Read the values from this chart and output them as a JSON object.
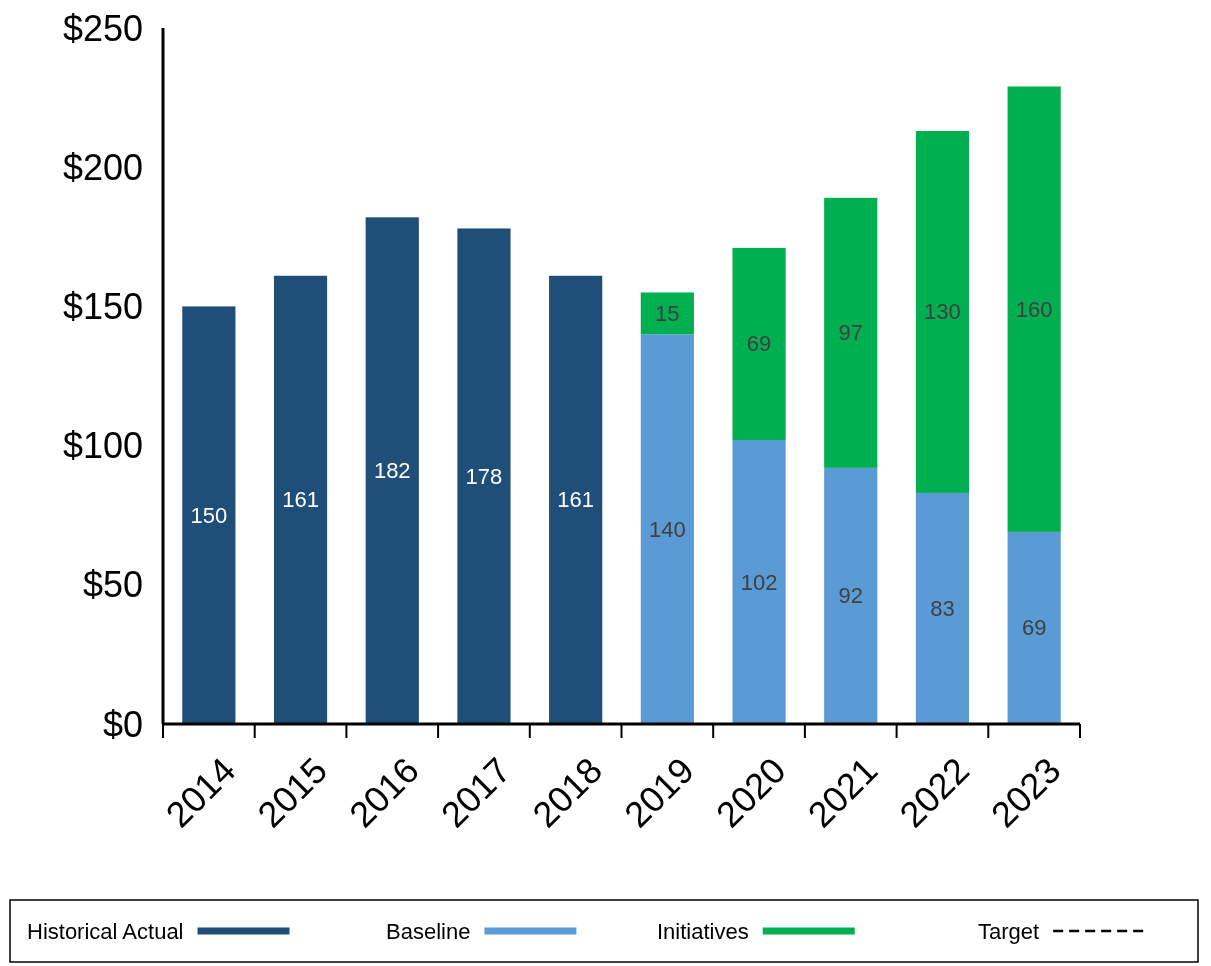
{
  "chart_data": {
    "type": "bar",
    "stacked": true,
    "data_labels": true,
    "legend": "bottom",
    "grid": false,
    "categories": [
      "2014",
      "2015",
      "2016",
      "2017",
      "2018",
      "2019",
      "2020",
      "2021",
      "2022",
      "2023"
    ],
    "ylim": [
      0,
      250
    ],
    "yticks": [
      {
        "value": 0,
        "label": "$0"
      },
      {
        "value": 50,
        "label": "$50"
      },
      {
        "value": 100,
        "label": "$100"
      },
      {
        "value": 150,
        "label": "$150"
      },
      {
        "value": 200,
        "label": "$200"
      },
      {
        "value": 250,
        "label": "$250"
      }
    ],
    "series": [
      {
        "name": "Historical Actual",
        "color": "#1f4e79",
        "values": [
          150,
          161,
          182,
          178,
          161,
          null,
          null,
          null,
          null,
          null
        ]
      },
      {
        "name": "Baseline",
        "color": "#5b9bd5",
        "values": [
          null,
          null,
          null,
          null,
          null,
          140,
          102,
          92,
          83,
          69
        ]
      },
      {
        "name": "Initiatives",
        "color": "#00b050",
        "values": [
          null,
          null,
          null,
          null,
          null,
          15,
          69,
          97,
          130,
          160
        ]
      },
      {
        "name": "Target",
        "type": "line",
        "line_style": "dashed",
        "color": "#000000",
        "values": [
          null,
          null,
          null,
          null,
          null,
          null,
          null,
          null,
          null,
          null
        ]
      }
    ]
  }
}
